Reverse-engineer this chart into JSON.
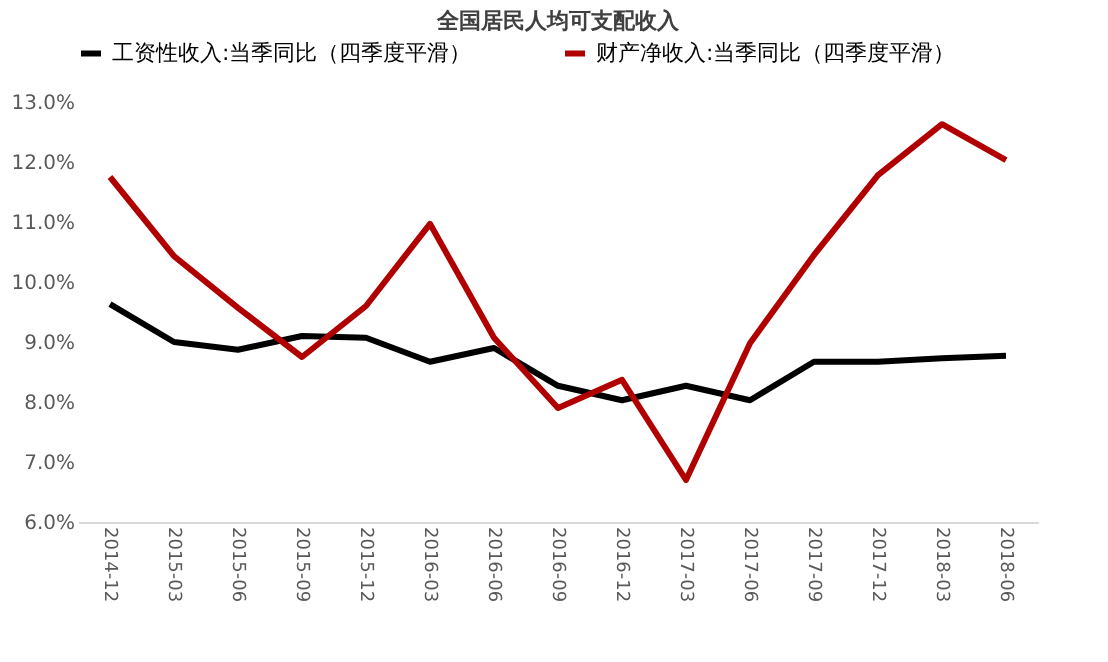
{
  "chart_data": {
    "type": "line",
    "title": "全国居民人均可支配收入",
    "categories": [
      "2014-12",
      "2015-03",
      "2015-06",
      "2015-09",
      "2015-12",
      "2016-03",
      "2016-06",
      "2016-09",
      "2016-12",
      "2017-03",
      "2017-06",
      "2017-09",
      "2017-12",
      "2018-03",
      "2018-06"
    ],
    "series": [
      {
        "name": "工资性收入:当季同比（四季度平滑）",
        "color": "#000000",
        "values": [
          9.63,
          9.0,
          8.87,
          9.1,
          9.07,
          8.67,
          8.9,
          8.27,
          8.03,
          8.27,
          8.03,
          8.67,
          8.67,
          8.73,
          8.77
        ]
      },
      {
        "name": "财产净收入:当季同比（四季度平滑）",
        "color": "#b00000",
        "values": [
          11.75,
          10.43,
          9.57,
          8.75,
          9.6,
          10.97,
          9.07,
          7.9,
          8.37,
          6.7,
          8.98,
          10.45,
          11.78,
          12.63,
          12.03
        ]
      }
    ],
    "ylim": [
      6,
      13
    ],
    "yticks": [
      {
        "value": 6,
        "label": "6.0%"
      },
      {
        "value": 7,
        "label": "7.0%"
      },
      {
        "value": 8,
        "label": "8.0%"
      },
      {
        "value": 9,
        "label": "9.0%"
      },
      {
        "value": 10,
        "label": "10.0%"
      },
      {
        "value": 11,
        "label": "11.0%"
      },
      {
        "value": 12,
        "label": "12.0%"
      },
      {
        "value": 13,
        "label": "13.0%"
      }
    ],
    "grid": false,
    "legend": "top",
    "marker": "none",
    "line_style": "solid"
  }
}
